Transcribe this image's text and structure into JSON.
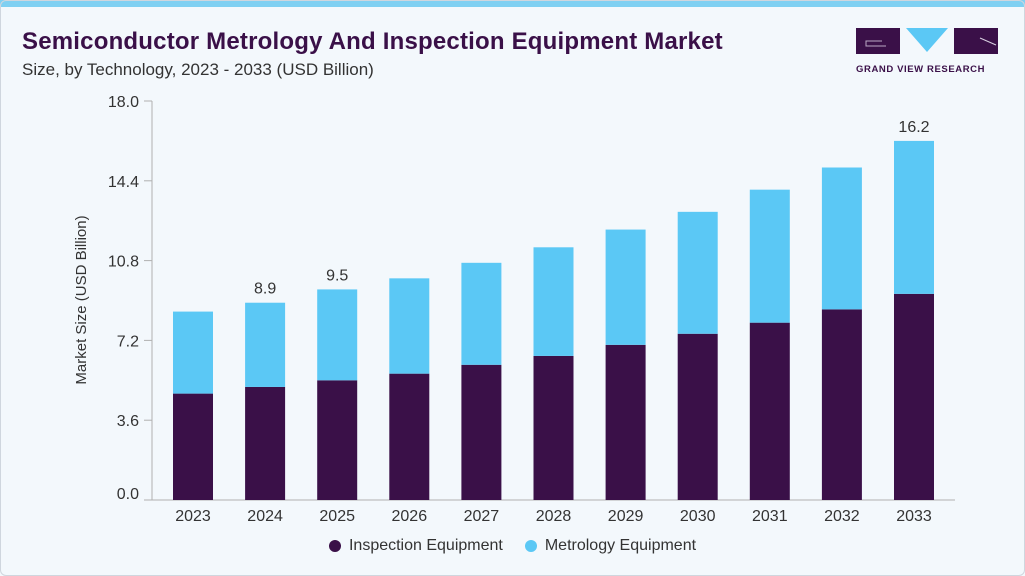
{
  "header": {
    "title": "Semiconductor Metrology And Inspection Equipment Market",
    "subtitle": "Size, by Technology, 2023 - 2033 (USD Billion)"
  },
  "logo": {
    "text": "GRAND VIEW RESEARCH"
  },
  "colors": {
    "inspection": "#3a1048",
    "metrology": "#5bc8f5",
    "accent": "#7fd0f2"
  },
  "chart_data": {
    "type": "bar",
    "stacked": true,
    "title": "Semiconductor Metrology And Inspection Equipment Market",
    "subtitle": "Size, by Technology, 2023 - 2033 (USD Billion)",
    "xlabel": "",
    "ylabel": "Market Size (USD Billion)",
    "ylim": [
      0,
      18
    ],
    "yticks": [
      "0.0",
      "3.6",
      "7.2",
      "10.8",
      "14.4",
      "18.0"
    ],
    "grid": false,
    "legend_position": "bottom",
    "categories": [
      "2023",
      "2024",
      "2025",
      "2026",
      "2027",
      "2028",
      "2029",
      "2030",
      "2031",
      "2032",
      "2033"
    ],
    "series": [
      {
        "name": "Inspection Equipment",
        "color": "#3a1048",
        "values": [
          4.8,
          5.1,
          5.4,
          5.7,
          6.1,
          6.5,
          7.0,
          7.5,
          8.0,
          8.6,
          9.3
        ]
      },
      {
        "name": "Metrology Equipment",
        "color": "#5bc8f5",
        "values": [
          3.7,
          3.8,
          4.1,
          4.3,
          4.6,
          4.9,
          5.2,
          5.5,
          6.0,
          6.4,
          6.9
        ]
      }
    ],
    "data_labels": [
      {
        "category": "2024",
        "text": "8.9"
      },
      {
        "category": "2025",
        "text": "9.5"
      },
      {
        "category": "2033",
        "text": "16.2"
      }
    ]
  }
}
